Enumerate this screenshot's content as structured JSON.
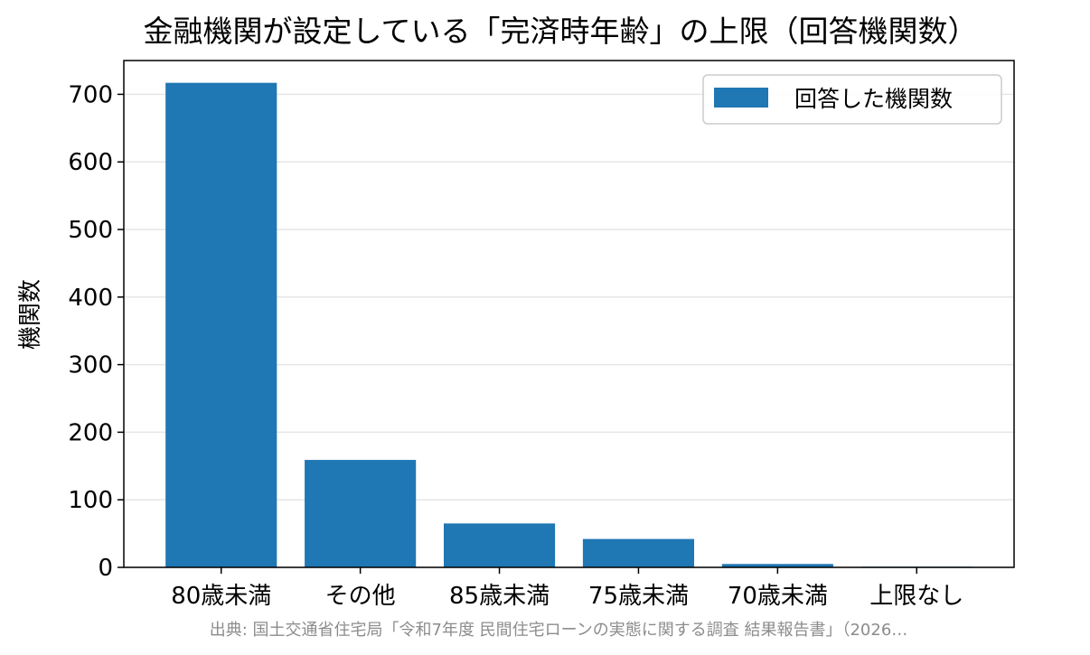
{
  "chart_data": {
    "type": "bar",
    "title": "金融機関が設定している「完済時年齢」の上限（回答機関数）",
    "xlabel": "",
    "ylabel": "機関数",
    "categories": [
      "80歳未満",
      "その他",
      "85歳未満",
      "75歳未満",
      "70歳未満",
      "上限なし"
    ],
    "series": [
      {
        "name": "回答した機関数",
        "values": [
          717,
          159,
          65,
          42,
          5,
          1
        ]
      }
    ],
    "ylim": [
      0,
      750
    ],
    "yticks": [
      0,
      100,
      200,
      300,
      400,
      500,
      600,
      700
    ],
    "grid": "y",
    "legend_position": "top-right",
    "bar_color": "#1f77b4"
  },
  "source": "出典: 国土交通省住宅局「令和7年度 民間住宅ローンの実態に関する調査 結果報告書」（2026…"
}
